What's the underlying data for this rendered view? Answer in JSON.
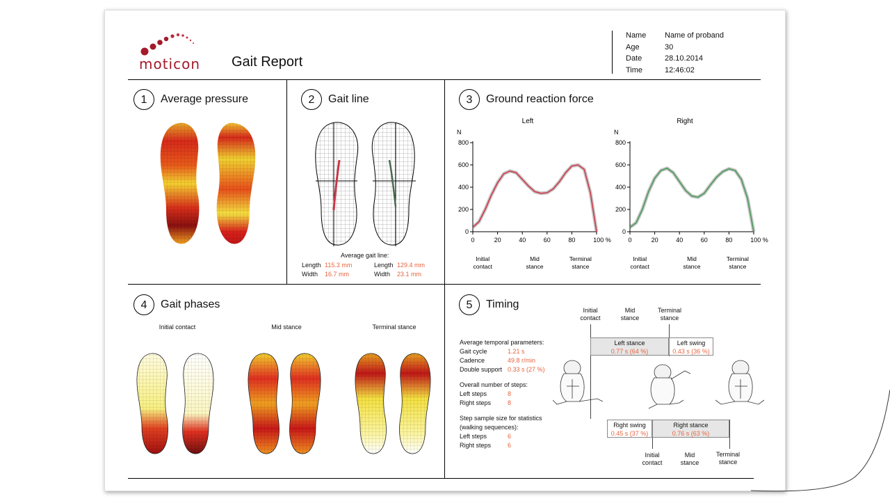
{
  "header": {
    "brand": "moticon",
    "title": "Gait Report",
    "info": [
      {
        "label": "Name",
        "value": "Name of proband"
      },
      {
        "label": "Age",
        "value": "30"
      },
      {
        "label": "Date",
        "value": "28.10.2014"
      },
      {
        "label": "Time",
        "value": "12:46:02"
      }
    ]
  },
  "sections": {
    "s1": {
      "num": "1",
      "title": "Average pressure"
    },
    "s2": {
      "num": "2",
      "title": "Gait line"
    },
    "s3": {
      "num": "3",
      "title": "Ground reaction force"
    },
    "s4": {
      "num": "4",
      "title": "Gait phases"
    },
    "s5": {
      "num": "5",
      "title": "Timing"
    }
  },
  "gait_line": {
    "caption": "Average gait line:",
    "left": {
      "length_label": "Length",
      "length": "115.3 mm",
      "width_label": "Width",
      "width": "16.7 mm"
    },
    "right": {
      "length_label": "Length",
      "length": "129.4 mm",
      "width_label": "Width",
      "width": "23.1 mm"
    }
  },
  "chart_data": [
    {
      "type": "line",
      "title": "Left",
      "ylabel": "N",
      "xlabel": "%",
      "ylim": [
        0,
        800
      ],
      "xlim": [
        0,
        100
      ],
      "yticks": [
        "0",
        "200",
        "400",
        "600",
        "800"
      ],
      "xticks": [
        "0",
        "20",
        "40",
        "60",
        "80",
        "100 %"
      ],
      "phase_labels": [
        [
          "Initial",
          "contact"
        ],
        [
          "Mid",
          "stance"
        ],
        [
          "Terminal",
          "stance"
        ]
      ],
      "color": "#d0394a",
      "series": [
        {
          "name": "Left",
          "x": [
            0,
            5,
            10,
            15,
            20,
            25,
            30,
            35,
            40,
            45,
            50,
            55,
            60,
            65,
            70,
            75,
            80,
            85,
            90,
            95,
            100
          ],
          "values": [
            40,
            90,
            200,
            330,
            440,
            520,
            545,
            530,
            470,
            410,
            360,
            345,
            350,
            385,
            450,
            530,
            590,
            600,
            560,
            350,
            0
          ]
        }
      ]
    },
    {
      "type": "line",
      "title": "Right",
      "ylabel": "N",
      "xlabel": "%",
      "ylim": [
        0,
        800
      ],
      "xlim": [
        0,
        100
      ],
      "yticks": [
        "0",
        "200",
        "400",
        "600",
        "800"
      ],
      "xticks": [
        "0",
        "20",
        "40",
        "60",
        "80",
        "100 %"
      ],
      "phase_labels": [
        [
          "Initial",
          "contact"
        ],
        [
          "Mid",
          "stance"
        ],
        [
          "Terminal",
          "stance"
        ]
      ],
      "color": "#4a9a5a",
      "series": [
        {
          "name": "Right",
          "x": [
            0,
            5,
            10,
            15,
            20,
            25,
            30,
            35,
            40,
            45,
            50,
            55,
            60,
            65,
            70,
            75,
            80,
            85,
            90,
            95,
            100
          ],
          "values": [
            40,
            80,
            200,
            360,
            480,
            550,
            570,
            530,
            450,
            370,
            320,
            310,
            345,
            420,
            490,
            540,
            565,
            550,
            470,
            300,
            0
          ]
        }
      ]
    }
  ],
  "gait_phases": {
    "labels": [
      "Initial contact",
      "Mid stance",
      "Terminal stance"
    ]
  },
  "timing": {
    "avg_title": "Average temporal parameters:",
    "avg": [
      {
        "label": "Gait cycle",
        "value": "1.21 s"
      },
      {
        "label": "Cadence",
        "value": "49.8 r/min"
      },
      {
        "label": "Double support",
        "value": "0.33 s (27 %)"
      }
    ],
    "steps_title": "Overall number of steps:",
    "steps": [
      {
        "label": "Left steps",
        "value": "8"
      },
      {
        "label": "Right steps",
        "value": "8"
      }
    ],
    "sample_title1": "Step sample size for statistics",
    "sample_title2": "(walking sequences):",
    "sample": [
      {
        "label": "Left steps",
        "value": "6"
      },
      {
        "label": "Right steps",
        "value": "6"
      }
    ],
    "top_labels": [
      [
        "Initial",
        "contact"
      ],
      [
        "Mid",
        "stance"
      ],
      [
        "Terminal",
        "stance"
      ]
    ],
    "bottom_labels": [
      [
        "Initial",
        "contact"
      ],
      [
        "Mid",
        "stance"
      ],
      [
        "Terminal",
        "stance"
      ]
    ],
    "left_stance": {
      "label": "Left stance",
      "value": "0.77 s (64 %)"
    },
    "left_swing": {
      "label": "Left swing",
      "value": "0.43 s (36 %)"
    },
    "right_swing": {
      "label": "Right swing",
      "value": "0.45 s (37 %)"
    },
    "right_stance": {
      "label": "Right stance",
      "value": "0.76 s (63 %)"
    }
  }
}
